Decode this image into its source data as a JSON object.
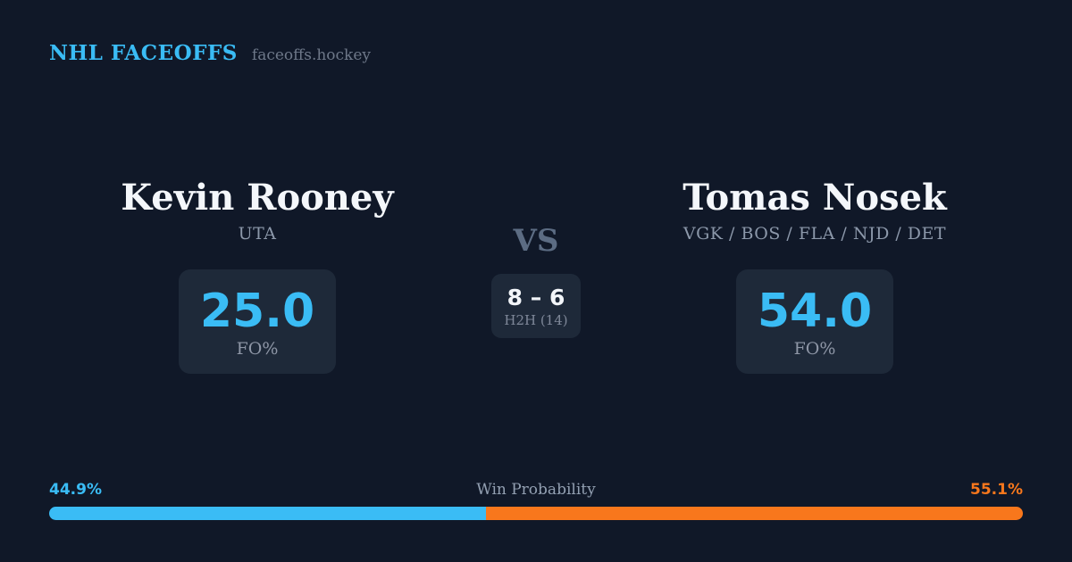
{
  "brand": {
    "title": "NHL FACEOFFS",
    "domain": "faceoffs.hockey"
  },
  "matchup": {
    "vs_label": "VS",
    "h2h": {
      "score": "8 – 6",
      "label": "H2H (14)"
    },
    "players": [
      {
        "name": "Kevin Rooney",
        "teams": "UTA",
        "fo_value": "25.0",
        "fo_label": "FO%"
      },
      {
        "name": "Tomas Nosek",
        "teams": "VGK / BOS / FLA / NJD / DET",
        "fo_value": "54.0",
        "fo_label": "FO%"
      }
    ]
  },
  "win_probability": {
    "label": "Win Probability",
    "left_pct_text": "44.9%",
    "right_pct_text": "55.1%",
    "left_value": 44.9,
    "right_value": 55.1
  },
  "colors": {
    "background": "#101828",
    "card_box": "#1e2939",
    "accent_blue": "#3abcf5",
    "accent_orange": "#f8771c"
  },
  "chart_data": {
    "type": "bar",
    "title": "Win Probability",
    "categories": [
      "Kevin Rooney",
      "Tomas Nosek"
    ],
    "series": [
      {
        "name": "Win Probability %",
        "values": [
          44.9,
          55.1
        ]
      },
      {
        "name": "FO%",
        "values": [
          25.0,
          54.0
        ]
      },
      {
        "name": "H2H wins (14 faceoffs)",
        "values": [
          8,
          6
        ]
      }
    ],
    "xlabel": "",
    "ylabel": "",
    "legend_position": "none",
    "grid": false,
    "layout": "horizontal stacked probability bar, blue = Kevin Rooney, orange = Tomas Nosek"
  }
}
